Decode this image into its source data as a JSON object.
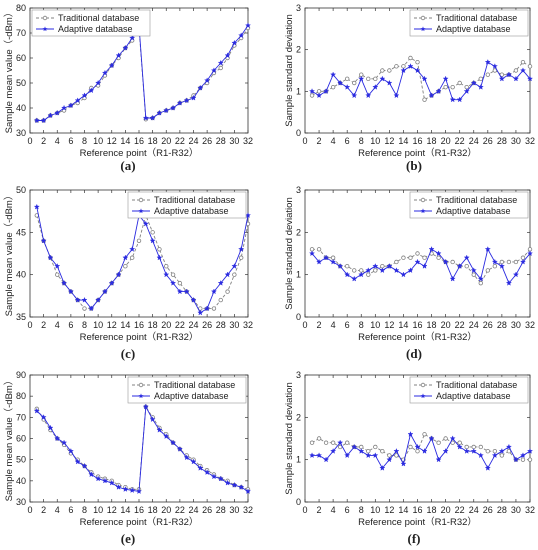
{
  "chart_data": [
    {
      "type": "line",
      "panel_label": "(a)",
      "xlabel": "Reference point（R1-R32）",
      "ylabel": "Sample mean value（-dBm）",
      "xlim": [
        0,
        32
      ],
      "ylim": [
        30,
        80
      ],
      "xticks": [
        0,
        2,
        4,
        6,
        8,
        10,
        12,
        14,
        16,
        18,
        20,
        22,
        24,
        26,
        28,
        30,
        32
      ],
      "yticks": [
        30,
        40,
        50,
        60,
        70,
        80
      ],
      "legend_position": "top-left",
      "x": [
        1,
        2,
        3,
        4,
        5,
        6,
        7,
        8,
        9,
        10,
        11,
        12,
        13,
        14,
        15,
        16,
        17,
        18,
        19,
        20,
        21,
        22,
        23,
        24,
        25,
        26,
        27,
        28,
        29,
        30,
        31,
        32
      ],
      "series": [
        {
          "name": "Traditional database",
          "color": "#808080",
          "dash": true,
          "marker": "circle",
          "values": [
            35,
            35,
            37,
            38,
            39,
            41,
            42,
            44,
            48,
            49,
            53,
            57,
            60,
            64,
            67,
            72,
            35.5,
            36,
            38,
            39,
            40,
            42,
            43,
            45,
            48,
            50,
            54,
            56,
            60,
            65,
            68,
            72
          ]
        },
        {
          "name": "Adaptive database",
          "color": "#2a2ae0",
          "dash": false,
          "marker": "star",
          "values": [
            35,
            35,
            37,
            38,
            40,
            41,
            43,
            45,
            47,
            50,
            54,
            57,
            61,
            64,
            68,
            73,
            36,
            36,
            38,
            39,
            40,
            42,
            43,
            44,
            48,
            51,
            55,
            58,
            61,
            66,
            69,
            73
          ]
        }
      ]
    },
    {
      "type": "line",
      "panel_label": "(b)",
      "xlabel": "Reference point（R1-R32）",
      "ylabel": "Sample standard deviation",
      "xlim": [
        0,
        32
      ],
      "ylim": [
        0,
        3
      ],
      "xticks": [
        0,
        2,
        4,
        6,
        8,
        10,
        12,
        14,
        16,
        18,
        20,
        22,
        24,
        26,
        28,
        30,
        32
      ],
      "yticks": [
        0,
        1,
        2,
        3
      ],
      "legend_position": "top-right",
      "x": [
        1,
        2,
        3,
        4,
        5,
        6,
        7,
        8,
        9,
        10,
        11,
        12,
        13,
        14,
        15,
        16,
        17,
        18,
        19,
        20,
        21,
        22,
        23,
        24,
        25,
        26,
        27,
        28,
        29,
        30,
        31,
        32
      ],
      "series": [
        {
          "name": "Traditional database",
          "color": "#808080",
          "dash": true,
          "marker": "circle",
          "values": [
            0.9,
            1.0,
            1.0,
            1.1,
            1.2,
            1.3,
            1.2,
            1.4,
            1.3,
            1.3,
            1.5,
            1.5,
            1.6,
            1.6,
            1.8,
            1.7,
            0.8,
            0.9,
            1.0,
            1.1,
            1.1,
            1.2,
            1.1,
            1.2,
            1.3,
            1.4,
            1.5,
            1.4,
            1.4,
            1.5,
            1.7,
            1.6
          ]
        },
        {
          "name": "Adaptive database",
          "color": "#2a2ae0",
          "dash": false,
          "marker": "star",
          "values": [
            1.0,
            0.9,
            1.0,
            1.4,
            1.2,
            1.1,
            0.9,
            1.3,
            0.9,
            1.1,
            1.3,
            1.2,
            0.9,
            1.5,
            1.6,
            1.5,
            1.3,
            0.9,
            1.0,
            1.3,
            0.8,
            0.8,
            1.0,
            1.2,
            1.1,
            1.7,
            1.6,
            1.3,
            1.4,
            1.3,
            1.5,
            1.3
          ]
        }
      ]
    },
    {
      "type": "line",
      "panel_label": "(c)",
      "xlabel": "Reference point（R1-R32）",
      "ylabel": "Sample mean value（-dBm）",
      "xlim": [
        0,
        32
      ],
      "ylim": [
        35,
        50
      ],
      "xticks": [
        0,
        2,
        4,
        6,
        8,
        10,
        12,
        14,
        16,
        18,
        20,
        22,
        24,
        26,
        28,
        30,
        32
      ],
      "yticks": [
        35,
        40,
        45,
        50
      ],
      "legend_position": "top-right",
      "x": [
        1,
        2,
        3,
        4,
        5,
        6,
        7,
        8,
        9,
        10,
        11,
        12,
        13,
        14,
        15,
        16,
        17,
        18,
        19,
        20,
        21,
        22,
        23,
        24,
        25,
        26,
        27,
        28,
        29,
        30,
        31,
        32
      ],
      "series": [
        {
          "name": "Traditional database",
          "color": "#808080",
          "dash": true,
          "marker": "circle",
          "values": [
            47,
            44,
            42,
            40,
            39,
            38,
            37,
            36,
            36,
            37,
            38,
            39,
            40,
            41,
            42,
            44,
            47,
            45,
            43,
            41,
            40,
            39,
            38,
            37,
            36,
            36,
            36,
            37,
            38,
            40,
            42,
            46
          ]
        },
        {
          "name": "Adaptive database",
          "color": "#2a2ae0",
          "dash": false,
          "marker": "star",
          "values": [
            48,
            44,
            42,
            41,
            39,
            38,
            37,
            37,
            36,
            37,
            38,
            39,
            40,
            42,
            43,
            47,
            46,
            44,
            42,
            40,
            39,
            38,
            38,
            37,
            35.5,
            36,
            38,
            39,
            40,
            41,
            43,
            47
          ]
        }
      ]
    },
    {
      "type": "line",
      "panel_label": "(d)",
      "xlabel": "Reference point（R1-R32）",
      "ylabel": "Sample standard deviation",
      "xlim": [
        0,
        32
      ],
      "ylim": [
        0,
        3
      ],
      "xticks": [
        0,
        2,
        4,
        6,
        8,
        10,
        12,
        14,
        16,
        18,
        20,
        22,
        24,
        26,
        28,
        30,
        32
      ],
      "yticks": [
        0,
        1,
        2,
        3
      ],
      "legend_position": "top-right",
      "x": [
        1,
        2,
        3,
        4,
        5,
        6,
        7,
        8,
        9,
        10,
        11,
        12,
        13,
        14,
        15,
        16,
        17,
        18,
        19,
        20,
        21,
        22,
        23,
        24,
        25,
        26,
        27,
        28,
        29,
        30,
        31,
        32
      ],
      "series": [
        {
          "name": "Traditional database",
          "color": "#808080",
          "dash": true,
          "marker": "circle",
          "values": [
            1.6,
            1.6,
            1.4,
            1.4,
            1.2,
            1.2,
            1.1,
            1.1,
            1.0,
            1.1,
            1.2,
            1.2,
            1.3,
            1.4,
            1.4,
            1.5,
            1.4,
            1.5,
            1.4,
            1.3,
            1.3,
            1.2,
            1.2,
            1.0,
            0.8,
            1.1,
            1.2,
            1.3,
            1.3,
            1.3,
            1.4,
            1.6
          ]
        },
        {
          "name": "Adaptive database",
          "color": "#2a2ae0",
          "dash": false,
          "marker": "star",
          "values": [
            1.5,
            1.3,
            1.4,
            1.3,
            1.2,
            1.0,
            0.9,
            1.0,
            1.1,
            1.2,
            1.1,
            1.2,
            1.1,
            1.0,
            1.1,
            1.3,
            1.2,
            1.6,
            1.5,
            1.3,
            0.9,
            1.2,
            1.4,
            1.1,
            0.9,
            1.6,
            1.3,
            1.2,
            0.8,
            1.0,
            1.3,
            1.5
          ]
        }
      ]
    },
    {
      "type": "line",
      "panel_label": "(e)",
      "xlabel": "Reference point（R1-R32）",
      "ylabel": "Sample mean value（-dBm）",
      "xlim": [
        0,
        32
      ],
      "ylim": [
        30,
        90
      ],
      "xticks": [
        0,
        2,
        4,
        6,
        8,
        10,
        12,
        14,
        16,
        18,
        20,
        22,
        24,
        26,
        28,
        30,
        32
      ],
      "yticks": [
        30,
        40,
        50,
        60,
        70,
        80,
        90
      ],
      "legend_position": "top-right",
      "x": [
        1,
        2,
        3,
        4,
        5,
        6,
        7,
        8,
        9,
        10,
        11,
        12,
        13,
        14,
        15,
        16,
        17,
        18,
        19,
        20,
        21,
        22,
        23,
        24,
        25,
        26,
        27,
        28,
        29,
        30,
        31,
        32
      ],
      "series": [
        {
          "name": "Traditional database",
          "color": "#808080",
          "dash": true,
          "marker": "circle",
          "values": [
            74,
            69,
            64,
            60,
            57,
            53,
            50,
            47,
            44,
            42,
            41,
            40,
            38,
            37,
            36,
            36,
            75,
            70,
            65,
            62,
            58,
            55,
            52,
            50,
            47,
            45,
            43,
            41,
            40,
            38,
            37,
            36
          ]
        },
        {
          "name": "Adaptive database",
          "color": "#2a2ae0",
          "dash": false,
          "marker": "star",
          "values": [
            73,
            70,
            65,
            60,
            58,
            54,
            49,
            47,
            43,
            41,
            40,
            39,
            37,
            36,
            35.5,
            35,
            75,
            69,
            64,
            61,
            58,
            55,
            51,
            49,
            46,
            44,
            42,
            41,
            39,
            38,
            37,
            35
          ]
        }
      ]
    },
    {
      "type": "line",
      "panel_label": "(f)",
      "xlabel": "Reference point（R1-R32）",
      "ylabel": "Sample standard deviation",
      "xlim": [
        0,
        32
      ],
      "ylim": [
        0,
        3
      ],
      "xticks": [
        0,
        2,
        4,
        6,
        8,
        10,
        12,
        14,
        16,
        18,
        20,
        22,
        24,
        26,
        28,
        30,
        32
      ],
      "yticks": [
        0,
        1,
        2,
        3
      ],
      "legend_position": "top-right",
      "x": [
        1,
        2,
        3,
        4,
        5,
        6,
        7,
        8,
        9,
        10,
        11,
        12,
        13,
        14,
        15,
        16,
        17,
        18,
        19,
        20,
        21,
        22,
        23,
        24,
        25,
        26,
        27,
        28,
        29,
        30,
        31,
        32
      ],
      "series": [
        {
          "name": "Traditional database",
          "color": "#808080",
          "dash": true,
          "marker": "circle",
          "values": [
            1.4,
            1.5,
            1.4,
            1.4,
            1.3,
            1.4,
            1.3,
            1.3,
            1.2,
            1.3,
            1.2,
            1.1,
            1.1,
            1.0,
            1.3,
            1.2,
            1.6,
            1.5,
            1.4,
            1.5,
            1.4,
            1.4,
            1.3,
            1.3,
            1.3,
            1.2,
            1.2,
            1.1,
            1.2,
            1.0,
            1.0,
            1.0
          ]
        },
        {
          "name": "Adaptive database",
          "color": "#2a2ae0",
          "dash": false,
          "marker": "star",
          "values": [
            1.1,
            1.1,
            1.0,
            1.2,
            1.4,
            1.1,
            1.3,
            1.2,
            1.1,
            1.1,
            0.8,
            1.0,
            1.2,
            0.9,
            1.6,
            1.3,
            1.2,
            1.5,
            1.0,
            1.2,
            1.5,
            1.3,
            1.2,
            1.2,
            1.1,
            0.8,
            1.1,
            1.2,
            1.3,
            1.0,
            1.1,
            1.2
          ]
        }
      ]
    }
  ]
}
